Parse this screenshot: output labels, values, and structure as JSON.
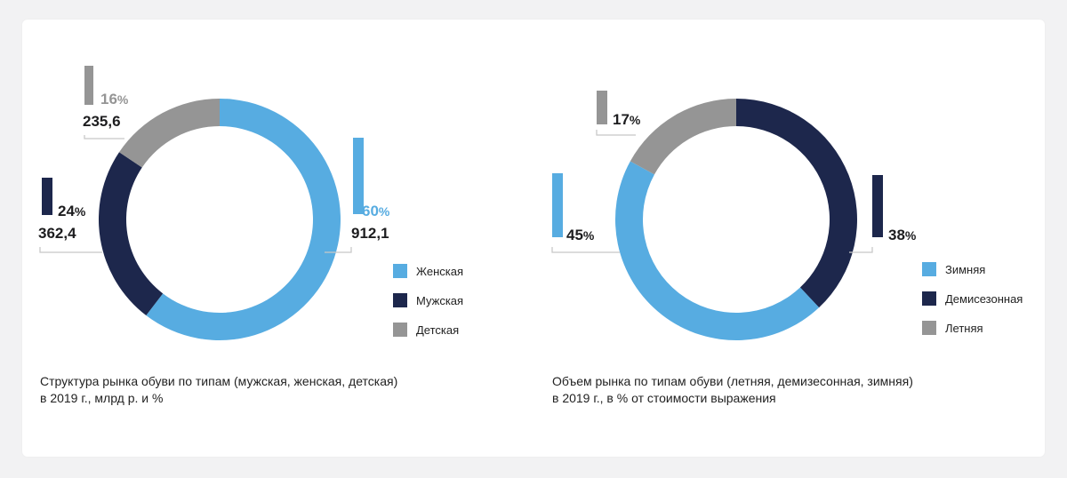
{
  "charts": [
    {
      "caption": [
        "Структура рынка обуви по типам (мужская, женская, детская)",
        "в 2019 г., млрд р. и %"
      ],
      "legend": [
        "Женская",
        "Мужская",
        "Детская"
      ]
    },
    {
      "caption": [
        "Объем рынка по типам обуви (летняя, демизесонная, зимняя)",
        "в 2019 г., в % от стоимости выражения"
      ],
      "legend": [
        "Зимняя",
        "Демисезонная",
        "Летняя"
      ]
    }
  ],
  "chart_data": [
    {
      "type": "pie",
      "title": "Структура рынка обуви по типам (мужская, женская, детская) в 2019 г., млрд р. и %",
      "start_angle_deg": 0,
      "slices": [
        {
          "name": "Женская",
          "value": 912.1,
          "percent": 60,
          "value_label": "912,1",
          "percent_label": "60%",
          "color": "#57ace1"
        },
        {
          "name": "Мужская",
          "value": 362.4,
          "percent": 24,
          "value_label": "362,4",
          "percent_label": "24%",
          "color": "#1d274c"
        },
        {
          "name": "Детская",
          "value": 235.6,
          "percent": 16,
          "value_label": "235,6",
          "percent_label": "16%",
          "color": "#959595"
        }
      ],
      "legend_position": "right"
    },
    {
      "type": "pie",
      "title": "Объем рынка по типам обуви (летняя, демизесонная, зимняя) в 2019 г., в % от стоимости выражения",
      "start_angle_deg": 0,
      "slices": [
        {
          "name": "Демисезонная",
          "value": 38,
          "percent": 38,
          "percent_label": "38%",
          "color": "#1d274c"
        },
        {
          "name": "Зимняя",
          "value": 45,
          "percent": 45,
          "percent_label": "45%",
          "color": "#57ace1"
        },
        {
          "name": "Летняя",
          "value": 17,
          "percent": 17,
          "percent_label": "17%",
          "color": "#959595"
        }
      ],
      "legend_position": "right"
    }
  ]
}
